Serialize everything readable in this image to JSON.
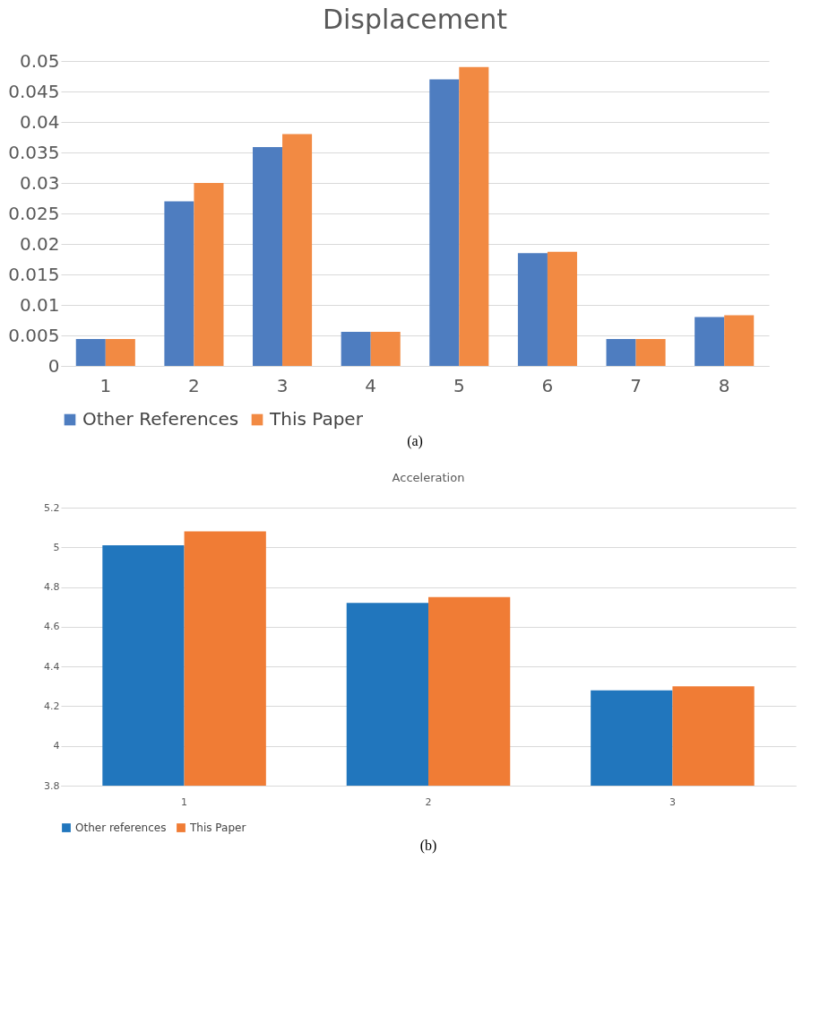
{
  "chart_data": [
    {
      "type": "bar",
      "title": "Displacement",
      "categories": [
        "1",
        "2",
        "3",
        "4",
        "5",
        "6",
        "7",
        "8"
      ],
      "series": [
        {
          "name": "Other References",
          "color": "#4e7dc0",
          "values": [
            0.0044,
            0.027,
            0.0359,
            0.0056,
            0.047,
            0.0185,
            0.0044,
            0.008
          ]
        },
        {
          "name": "This Paper",
          "color": "#f28a43",
          "values": [
            0.0044,
            0.03,
            0.038,
            0.0056,
            0.049,
            0.0187,
            0.0044,
            0.0083
          ]
        }
      ],
      "ylim": [
        0,
        0.05
      ],
      "yticks": [
        0,
        0.005,
        0.01,
        0.015,
        0.02,
        0.025,
        0.03,
        0.035,
        0.04,
        0.045,
        0.05
      ],
      "grid": "y",
      "legend": "bottom",
      "annotations": [
        "(a)"
      ]
    },
    {
      "type": "bar",
      "title": "Acceleration",
      "categories": [
        "1",
        "2",
        "3"
      ],
      "series": [
        {
          "name": "Other references",
          "color": "#2176bd",
          "values": [
            5.01,
            4.72,
            4.28
          ]
        },
        {
          "name": "This Paper",
          "color": "#f07c35",
          "values": [
            5.08,
            4.75,
            4.3
          ]
        }
      ],
      "ylim": [
        3.8,
        5.2
      ],
      "yticks": [
        3.8,
        4,
        4.2,
        4.4,
        4.6,
        4.8,
        5,
        5.2
      ],
      "grid": "y",
      "legend": "bottom",
      "annotations": [
        "(b)"
      ]
    }
  ]
}
